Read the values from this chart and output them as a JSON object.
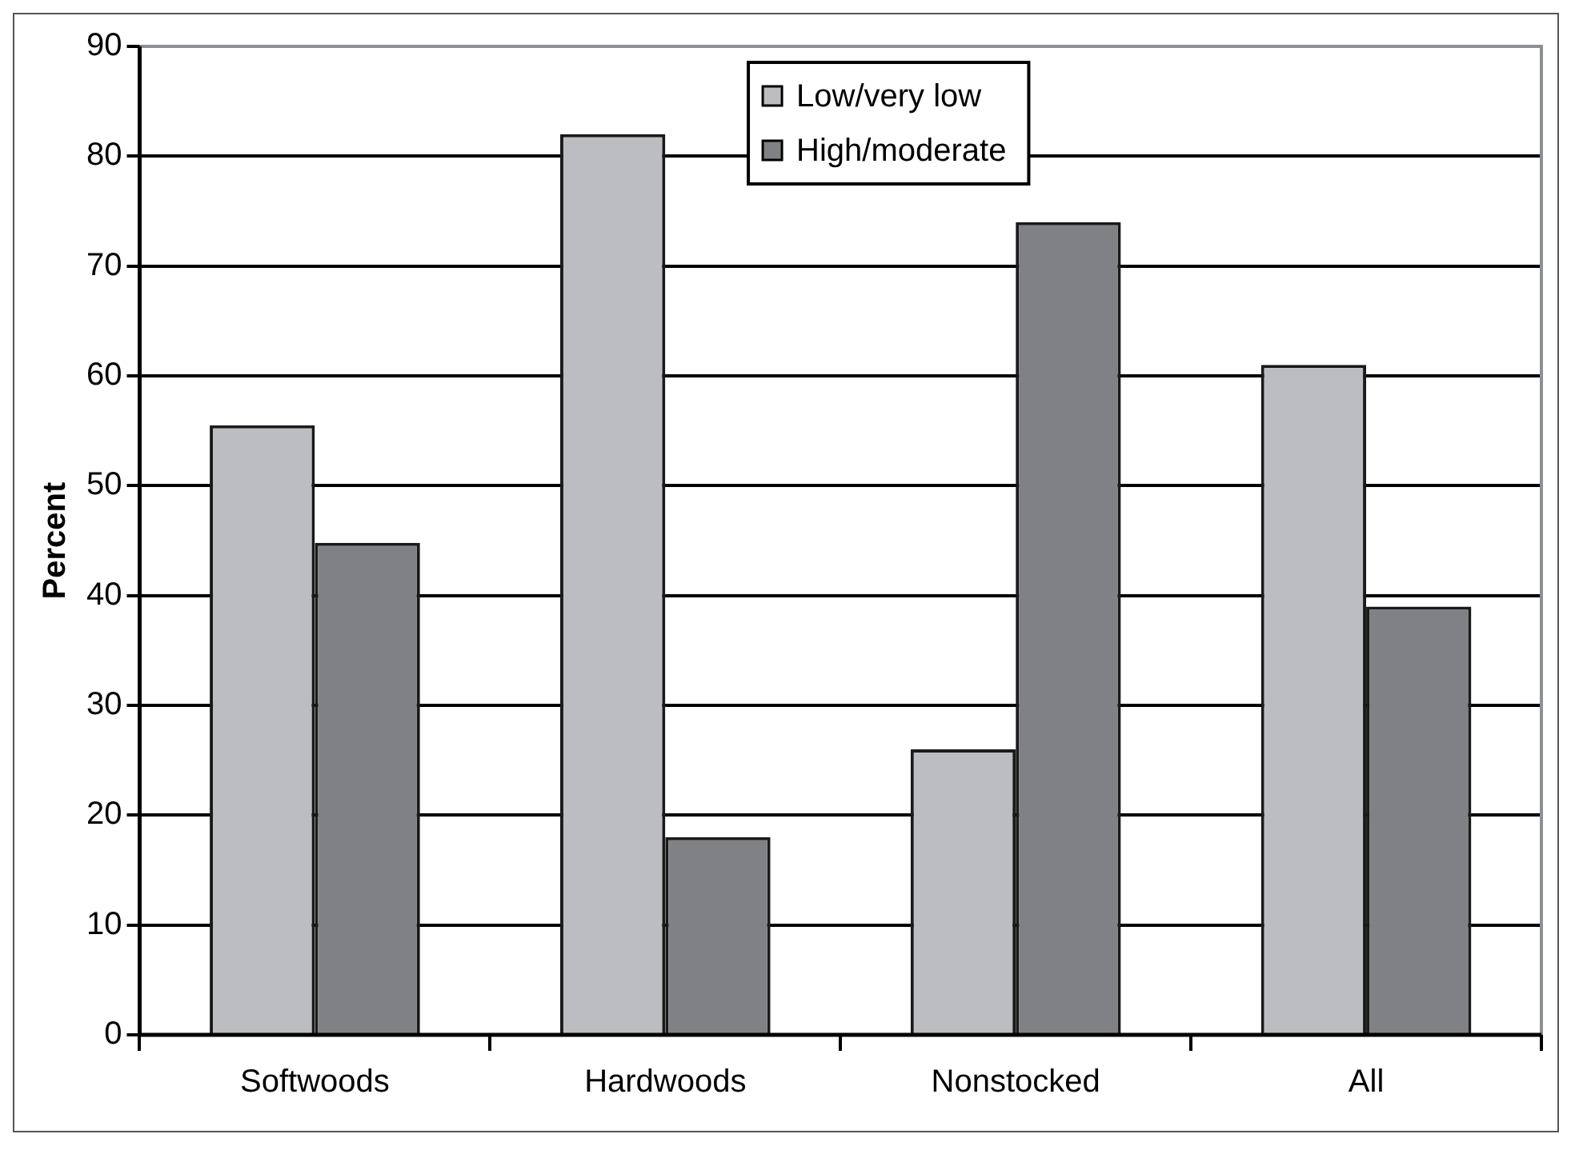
{
  "chart_data": {
    "type": "bar",
    "ylabel": "Percent",
    "categories": [
      "Softwoods",
      "Hardwoods",
      "Nonstocked",
      "All"
    ],
    "series": [
      {
        "name": "Low/very low",
        "color": "#bcbdc1",
        "values": [
          55.5,
          82,
          26,
          61
        ]
      },
      {
        "name": "High/moderate",
        "color": "#808184",
        "values": [
          44.8,
          18,
          74,
          39
        ]
      }
    ],
    "ylim": [
      0,
      90
    ],
    "yticks": [
      0,
      10,
      20,
      30,
      40,
      50,
      60,
      70,
      80,
      90
    ],
    "grid": "y",
    "legend": "top"
  }
}
